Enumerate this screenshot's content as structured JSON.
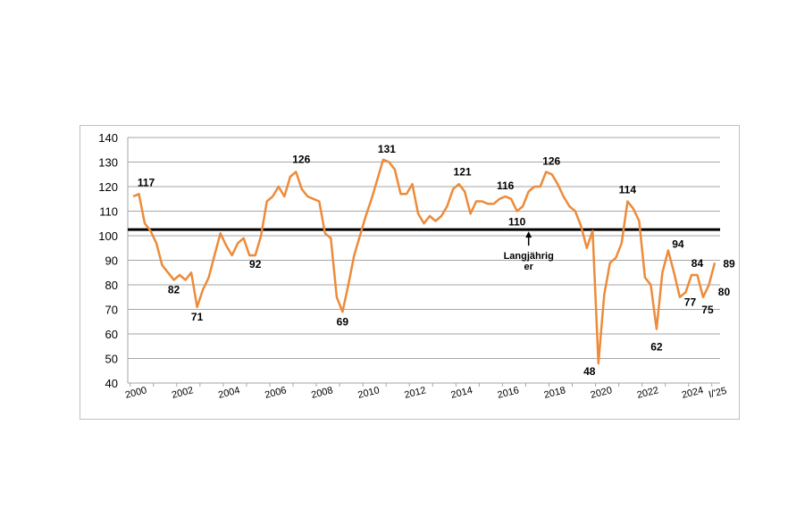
{
  "chart_data": {
    "type": "line",
    "title": "",
    "xlabel": "",
    "ylabel": "",
    "ylim": [
      40,
      140
    ],
    "yticks": [
      40,
      50,
      60,
      70,
      80,
      90,
      100,
      110,
      120,
      130,
      140
    ],
    "xtick_labels": [
      "2000",
      "2002",
      "2004",
      "2006",
      "2008",
      "2010",
      "2012",
      "2014",
      "2016",
      "2018",
      "2020",
      "2022",
      "2024",
      "I/'25"
    ],
    "grid": "horizontal",
    "reference_line": {
      "value": 102.5,
      "label": "Langjährig er"
    },
    "series": [
      {
        "color": "#ED8B3A",
        "x": [
          "2000 I",
          "2000 II",
          "2000 III",
          "2000 IV",
          "2001 I",
          "2001 II",
          "2001 III",
          "2001 IV",
          "2002 I",
          "2002 II",
          "2002 III",
          "2002 IV",
          "2003 I",
          "2003 II",
          "2003 III",
          "2003 IV",
          "2004 I",
          "2004 II",
          "2004 III",
          "2004 IV",
          "2005 I",
          "2005 II",
          "2005 III",
          "2005 IV",
          "2006 I",
          "2006 II",
          "2006 III",
          "2006 IV",
          "2007 I",
          "2007 II",
          "2007 III",
          "2007 IV",
          "2008 I",
          "2008 II",
          "2008 III",
          "2008 IV",
          "2009 I",
          "2009 II",
          "2009 III",
          "2009 IV",
          "2010 I",
          "2010 II",
          "2010 III",
          "2010 IV",
          "2011 I",
          "2011 II",
          "2011 III",
          "2011 IV",
          "2012 I",
          "2012 II",
          "2012 III",
          "2012 IV",
          "2013 I",
          "2013 II",
          "2013 III",
          "2013 IV",
          "2014 I",
          "2014 II",
          "2014 III",
          "2014 IV",
          "2015 I",
          "2015 II",
          "2015 III",
          "2015 IV",
          "2016 I",
          "2016 II",
          "2016 III",
          "2016 IV",
          "2017 I",
          "2017 II",
          "2017 III",
          "2017 IV",
          "2018 I",
          "2018 II",
          "2018 III",
          "2018 IV",
          "2019 I",
          "2019 II",
          "2019 III",
          "2019 IV",
          "2020 I",
          "2020 II",
          "2020 III",
          "2020 IV",
          "2021 I",
          "2021 II",
          "2021 III",
          "2021 IV",
          "2022 I",
          "2022 II",
          "2022 III",
          "2022 IV",
          "2023 I",
          "2023 II",
          "2023 III",
          "2023 IV",
          "2024 I",
          "2024 II",
          "2024 III",
          "2024 IV",
          "2025 I"
        ],
        "values": [
          116,
          117,
          105,
          102,
          97,
          88,
          85,
          82,
          84,
          82,
          85,
          71,
          78,
          83,
          92,
          101,
          96,
          92,
          97,
          99,
          92,
          92,
          100,
          114,
          116,
          120,
          116,
          124,
          126,
          119,
          116,
          115,
          114,
          101,
          99,
          75,
          69,
          80,
          92,
          100,
          108,
          115,
          123,
          131,
          130,
          127,
          117,
          117,
          121,
          109,
          105,
          108,
          106,
          108,
          112,
          119,
          121,
          118,
          109,
          114,
          114,
          113,
          113,
          115,
          116,
          115,
          110,
          112,
          118,
          120,
          120,
          126,
          125,
          121,
          116,
          112,
          110,
          104,
          95,
          102,
          48,
          76,
          89,
          91,
          97,
          114,
          111,
          106,
          83,
          80,
          62,
          85,
          94,
          85,
          75,
          77,
          84,
          84,
          75,
          80,
          89
        ]
      }
    ],
    "data_labels": [
      {
        "index": 1,
        "text": "117"
      },
      {
        "index": 7,
        "text": "82"
      },
      {
        "index": 11,
        "text": "71"
      },
      {
        "index": 21,
        "text": "92"
      },
      {
        "index": 28,
        "text": "126"
      },
      {
        "index": 36,
        "text": "69"
      },
      {
        "index": 43,
        "text": "131"
      },
      {
        "index": 56,
        "text": "121"
      },
      {
        "index": 64,
        "text": "116"
      },
      {
        "index": 66,
        "text": "110"
      },
      {
        "index": 71,
        "text": "126"
      },
      {
        "index": 80,
        "text": "48"
      },
      {
        "index": 85,
        "text": "114"
      },
      {
        "index": 90,
        "text": "62"
      },
      {
        "index": 92,
        "text": "94"
      },
      {
        "index": 95,
        "text": "77"
      },
      {
        "index": 97,
        "text": "84"
      },
      {
        "index": 98,
        "text": "75"
      },
      {
        "index": 99,
        "text": "80"
      },
      {
        "index": 100,
        "text": "89"
      }
    ]
  }
}
